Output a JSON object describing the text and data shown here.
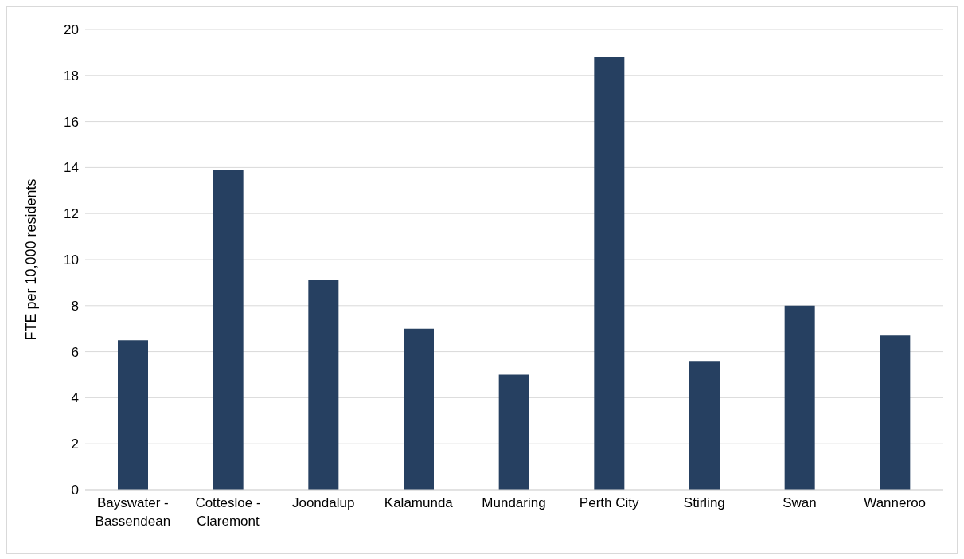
{
  "chart_data": {
    "type": "bar",
    "ylabel": "FTE per 10,000 residents",
    "categories": [
      "Bayswater - Bassendean",
      "Cottesloe - Claremont",
      "Joondalup",
      "Kalamunda",
      "Mundaring",
      "Perth City",
      "Stirling",
      "Swan",
      "Wanneroo"
    ],
    "values": [
      6.5,
      13.9,
      9.1,
      7.0,
      5.0,
      18.8,
      5.6,
      8.0,
      6.7
    ],
    "color": "#264061",
    "ylim": [
      0,
      20
    ],
    "yticks": [
      0,
      2,
      4,
      6,
      8,
      10,
      12,
      14,
      16,
      18,
      20
    ],
    "grid": "y"
  }
}
